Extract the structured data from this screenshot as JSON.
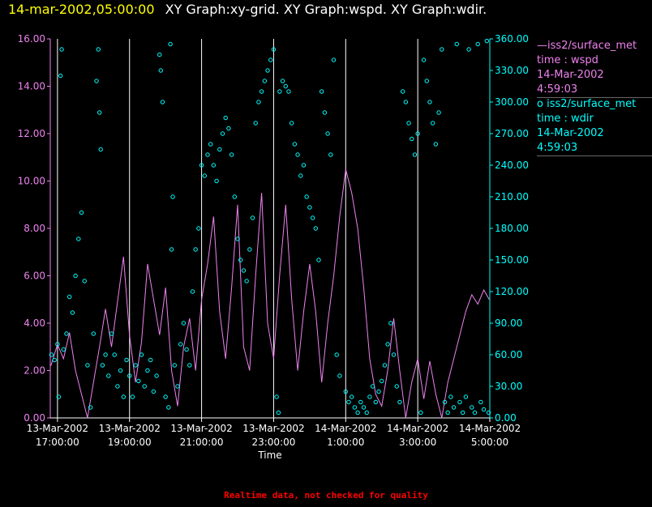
{
  "header": {
    "timestamp": "14-mar-2002,05:00:00",
    "graphs": "XY Graph:xy-grid.  XY Graph:wspd.  XY Graph:wdir."
  },
  "legend": [
    {
      "symbol": "—",
      "source": "iss2/surface_met",
      "field": "time : wspd",
      "date": "14-Mar-2002",
      "time": "4:59:03"
    },
    {
      "symbol": "o",
      "source": "iss2/surface_met",
      "field": "time : wdir",
      "date": "14-Mar-2002",
      "time": "4:59:03"
    }
  ],
  "footer": "Realtime data, not checked for quality",
  "colors": {
    "wspd": "#ee82ee",
    "wdir": "#00ffff",
    "grid": "#ffffff",
    "header_time": "#ffff00",
    "footer": "#ff0000"
  },
  "chart_data": {
    "type": "line",
    "xlabel": "Time",
    "x_ticks": [
      {
        "date": "13-Mar-2002",
        "time": "17:00:00"
      },
      {
        "date": "13-Mar-2002",
        "time": "19:00:00"
      },
      {
        "date": "13-Mar-2002",
        "time": "21:00:00"
      },
      {
        "date": "13-Mar-2002",
        "time": "23:00:00"
      },
      {
        "date": "14-Mar-2002",
        "time": "1:00:00"
      },
      {
        "date": "14-Mar-2002",
        "time": "3:00:00"
      },
      {
        "date": "14-Mar-2002",
        "time": "5:00:00"
      }
    ],
    "xlim": [
      "2002-03-13 16:48",
      "2002-03-14 05:00"
    ],
    "y_left": {
      "label": "",
      "lim": [
        0,
        16
      ],
      "ticks": [
        "0.00",
        "2.00",
        "4.00",
        "6.00",
        "8.00",
        "10.00",
        "12.00",
        "14.00",
        "16.00"
      ]
    },
    "y_right": {
      "label": "",
      "lim": [
        0,
        360
      ],
      "ticks": [
        "0.00",
        "30.00",
        "60.00",
        "90.00",
        "120.00",
        "150.00",
        "180.00",
        "210.00",
        "240.00",
        "270.00",
        "300.00",
        "330.00",
        "360.00"
      ]
    },
    "grid": "vertical",
    "series": [
      {
        "name": "iss2/surface_met time : wspd",
        "axis": "left",
        "style": "line",
        "points": [
          [
            "2002-03-13 16:49",
            2.2
          ],
          [
            "2002-03-13 17:00",
            3.1
          ],
          [
            "2002-03-13 17:10",
            2.5
          ],
          [
            "2002-03-13 17:20",
            3.6
          ],
          [
            "2002-03-13 17:30",
            2.0
          ],
          [
            "2002-03-13 17:40",
            1.0
          ],
          [
            "2002-03-13 17:50",
            0.0
          ],
          [
            "2002-03-13 18:00",
            1.5
          ],
          [
            "2002-03-13 18:10",
            3.0
          ],
          [
            "2002-03-13 18:20",
            4.6
          ],
          [
            "2002-03-13 18:30",
            3.0
          ],
          [
            "2002-03-13 18:40",
            4.9
          ],
          [
            "2002-03-13 18:50",
            6.8
          ],
          [
            "2002-03-13 19:00",
            3.5
          ],
          [
            "2002-03-13 19:10",
            1.5
          ],
          [
            "2002-03-13 19:20",
            3.2
          ],
          [
            "2002-03-13 19:30",
            6.5
          ],
          [
            "2002-03-13 19:40",
            5.0
          ],
          [
            "2002-03-13 19:50",
            3.5
          ],
          [
            "2002-03-13 20:00",
            5.5
          ],
          [
            "2002-03-13 20:10",
            2.0
          ],
          [
            "2002-03-13 20:20",
            0.5
          ],
          [
            "2002-03-13 20:30",
            3.0
          ],
          [
            "2002-03-13 20:40",
            4.2
          ],
          [
            "2002-03-13 20:50",
            2.0
          ],
          [
            "2002-03-13 21:00",
            5.0
          ],
          [
            "2002-03-13 21:10",
            6.5
          ],
          [
            "2002-03-13 21:20",
            8.5
          ],
          [
            "2002-03-13 21:30",
            4.5
          ],
          [
            "2002-03-13 21:40",
            2.5
          ],
          [
            "2002-03-13 21:50",
            5.5
          ],
          [
            "2002-03-13 22:00",
            9.0
          ],
          [
            "2002-03-13 22:10",
            3.0
          ],
          [
            "2002-03-13 22:20",
            2.0
          ],
          [
            "2002-03-13 22:30",
            6.0
          ],
          [
            "2002-03-13 22:40",
            9.5
          ],
          [
            "2002-03-13 22:50",
            4.0
          ],
          [
            "2002-03-13 23:00",
            2.5
          ],
          [
            "2002-03-13 23:10",
            6.0
          ],
          [
            "2002-03-13 23:20",
            9.0
          ],
          [
            "2002-03-13 23:30",
            5.0
          ],
          [
            "2002-03-13 23:40",
            2.0
          ],
          [
            "2002-03-13 23:50",
            4.5
          ],
          [
            "2002-03-14 00:00",
            6.5
          ],
          [
            "2002-03-14 00:10",
            4.5
          ],
          [
            "2002-03-14 00:20",
            1.5
          ],
          [
            "2002-03-14 00:30",
            4.0
          ],
          [
            "2002-03-14 00:40",
            6.0
          ],
          [
            "2002-03-14 00:50",
            8.5
          ],
          [
            "2002-03-14 01:00",
            10.5
          ],
          [
            "2002-03-14 01:10",
            9.5
          ],
          [
            "2002-03-14 01:20",
            8.0
          ],
          [
            "2002-03-14 01:30",
            5.5
          ],
          [
            "2002-03-14 01:40",
            2.5
          ],
          [
            "2002-03-14 01:50",
            1.0
          ],
          [
            "2002-03-14 02:00",
            0.5
          ],
          [
            "2002-03-14 02:10",
            2.0
          ],
          [
            "2002-03-14 02:20",
            4.2
          ],
          [
            "2002-03-14 02:30",
            2.0
          ],
          [
            "2002-03-14 02:40",
            0.0
          ],
          [
            "2002-03-14 02:50",
            1.5
          ],
          [
            "2002-03-14 03:00",
            2.5
          ],
          [
            "2002-03-14 03:10",
            0.8
          ],
          [
            "2002-03-14 03:20",
            2.4
          ],
          [
            "2002-03-14 03:30",
            1.0
          ],
          [
            "2002-03-14 03:40",
            0.0
          ],
          [
            "2002-03-14 03:50",
            1.5
          ],
          [
            "2002-03-14 04:00",
            2.5
          ],
          [
            "2002-03-14 04:10",
            3.5
          ],
          [
            "2002-03-14 04:20",
            4.5
          ],
          [
            "2002-03-14 04:30",
            5.2
          ],
          [
            "2002-03-14 04:40",
            4.8
          ],
          [
            "2002-03-14 04:50",
            5.4
          ],
          [
            "2002-03-14 04:59",
            5.0
          ]
        ]
      },
      {
        "name": "iss2/surface_met time : wdir",
        "axis": "right",
        "style": "scatter",
        "points": [
          [
            "2002-03-13 16:50",
            60
          ],
          [
            "2002-03-13 16:55",
            55
          ],
          [
            "2002-03-13 17:00",
            70
          ],
          [
            "2002-03-13 17:02",
            20
          ],
          [
            "2002-03-13 17:05",
            325
          ],
          [
            "2002-03-13 17:07",
            350
          ],
          [
            "2002-03-13 17:10",
            65
          ],
          [
            "2002-03-13 17:15",
            80
          ],
          [
            "2002-03-13 17:20",
            115
          ],
          [
            "2002-03-13 17:25",
            100
          ],
          [
            "2002-03-13 17:30",
            135
          ],
          [
            "2002-03-13 17:35",
            170
          ],
          [
            "2002-03-13 17:40",
            195
          ],
          [
            "2002-03-13 17:45",
            130
          ],
          [
            "2002-03-13 17:50",
            50
          ],
          [
            "2002-03-13 17:55",
            10
          ],
          [
            "2002-03-13 18:00",
            80
          ],
          [
            "2002-03-13 18:05",
            320
          ],
          [
            "2002-03-13 18:08",
            350
          ],
          [
            "2002-03-13 18:10",
            290
          ],
          [
            "2002-03-13 18:12",
            255
          ],
          [
            "2002-03-13 18:15",
            50
          ],
          [
            "2002-03-13 18:20",
            60
          ],
          [
            "2002-03-13 18:25",
            40
          ],
          [
            "2002-03-13 18:30",
            80
          ],
          [
            "2002-03-13 18:35",
            60
          ],
          [
            "2002-03-13 18:40",
            30
          ],
          [
            "2002-03-13 18:45",
            45
          ],
          [
            "2002-03-13 18:50",
            20
          ],
          [
            "2002-03-13 18:55",
            55
          ],
          [
            "2002-03-13 19:00",
            40
          ],
          [
            "2002-03-13 19:05",
            20
          ],
          [
            "2002-03-13 19:10",
            50
          ],
          [
            "2002-03-13 19:15",
            35
          ],
          [
            "2002-03-13 19:20",
            60
          ],
          [
            "2002-03-13 19:25",
            30
          ],
          [
            "2002-03-13 19:30",
            45
          ],
          [
            "2002-03-13 19:35",
            55
          ],
          [
            "2002-03-13 19:40",
            25
          ],
          [
            "2002-03-13 19:45",
            40
          ],
          [
            "2002-03-13 19:50",
            345
          ],
          [
            "2002-03-13 19:52",
            330
          ],
          [
            "2002-03-13 19:55",
            300
          ],
          [
            "2002-03-13 20:00",
            20
          ],
          [
            "2002-03-13 20:05",
            10
          ],
          [
            "2002-03-13 20:08",
            355
          ],
          [
            "2002-03-13 20:10",
            160
          ],
          [
            "2002-03-13 20:12",
            210
          ],
          [
            "2002-03-13 20:15",
            50
          ],
          [
            "2002-03-13 20:20",
            30
          ],
          [
            "2002-03-13 20:25",
            70
          ],
          [
            "2002-03-13 20:30",
            90
          ],
          [
            "2002-03-13 20:35",
            65
          ],
          [
            "2002-03-13 20:40",
            50
          ],
          [
            "2002-03-13 20:45",
            120
          ],
          [
            "2002-03-13 20:50",
            160
          ],
          [
            "2002-03-13 20:55",
            180
          ],
          [
            "2002-03-13 21:00",
            240
          ],
          [
            "2002-03-13 21:05",
            230
          ],
          [
            "2002-03-13 21:10",
            250
          ],
          [
            "2002-03-13 21:15",
            260
          ],
          [
            "2002-03-13 21:20",
            240
          ],
          [
            "2002-03-13 21:25",
            225
          ],
          [
            "2002-03-13 21:30",
            255
          ],
          [
            "2002-03-13 21:35",
            270
          ],
          [
            "2002-03-13 21:40",
            285
          ],
          [
            "2002-03-13 21:45",
            275
          ],
          [
            "2002-03-13 21:50",
            250
          ],
          [
            "2002-03-13 21:55",
            210
          ],
          [
            "2002-03-13 22:00",
            170
          ],
          [
            "2002-03-13 22:05",
            150
          ],
          [
            "2002-03-13 22:10",
            140
          ],
          [
            "2002-03-13 22:15",
            130
          ],
          [
            "2002-03-13 22:20",
            160
          ],
          [
            "2002-03-13 22:25",
            190
          ],
          [
            "2002-03-13 22:30",
            280
          ],
          [
            "2002-03-13 22:35",
            300
          ],
          [
            "2002-03-13 22:40",
            310
          ],
          [
            "2002-03-13 22:45",
            320
          ],
          [
            "2002-03-13 22:50",
            330
          ],
          [
            "2002-03-13 22:55",
            340
          ],
          [
            "2002-03-13 23:00",
            350
          ],
          [
            "2002-03-13 23:05",
            20
          ],
          [
            "2002-03-13 23:08",
            5
          ],
          [
            "2002-03-13 23:10",
            310
          ],
          [
            "2002-03-13 23:15",
            320
          ],
          [
            "2002-03-13 23:20",
            315
          ],
          [
            "2002-03-13 23:25",
            310
          ],
          [
            "2002-03-13 23:30",
            280
          ],
          [
            "2002-03-13 23:35",
            260
          ],
          [
            "2002-03-13 23:40",
            250
          ],
          [
            "2002-03-13 23:45",
            230
          ],
          [
            "2002-03-13 23:50",
            240
          ],
          [
            "2002-03-13 23:55",
            210
          ],
          [
            "2002-03-14 00:00",
            200
          ],
          [
            "2002-03-14 00:05",
            190
          ],
          [
            "2002-03-14 00:10",
            180
          ],
          [
            "2002-03-14 00:15",
            150
          ],
          [
            "2002-03-14 00:20",
            310
          ],
          [
            "2002-03-14 00:25",
            290
          ],
          [
            "2002-03-14 00:30",
            270
          ],
          [
            "2002-03-14 00:35",
            250
          ],
          [
            "2002-03-14 00:40",
            340
          ],
          [
            "2002-03-14 00:45",
            60
          ],
          [
            "2002-03-14 00:50",
            40
          ],
          [
            "2002-03-14 01:00",
            25
          ],
          [
            "2002-03-14 01:05",
            15
          ],
          [
            "2002-03-14 01:10",
            20
          ],
          [
            "2002-03-14 01:15",
            10
          ],
          [
            "2002-03-14 01:20",
            5
          ],
          [
            "2002-03-14 01:25",
            15
          ],
          [
            "2002-03-14 01:30",
            10
          ],
          [
            "2002-03-14 01:35",
            5
          ],
          [
            "2002-03-14 01:40",
            20
          ],
          [
            "2002-03-14 01:45",
            30
          ],
          [
            "2002-03-14 01:50",
            15
          ],
          [
            "2002-03-14 01:55",
            25
          ],
          [
            "2002-03-14 02:00",
            35
          ],
          [
            "2002-03-14 02:05",
            50
          ],
          [
            "2002-03-14 02:10",
            70
          ],
          [
            "2002-03-14 02:15",
            90
          ],
          [
            "2002-03-14 02:20",
            60
          ],
          [
            "2002-03-14 02:25",
            30
          ],
          [
            "2002-03-14 02:30",
            15
          ],
          [
            "2002-03-14 02:35",
            310
          ],
          [
            "2002-03-14 02:40",
            300
          ],
          [
            "2002-03-14 02:45",
            280
          ],
          [
            "2002-03-14 02:50",
            265
          ],
          [
            "2002-03-14 02:55",
            250
          ],
          [
            "2002-03-14 03:00",
            270
          ],
          [
            "2002-03-14 03:05",
            5
          ],
          [
            "2002-03-14 03:10",
            340
          ],
          [
            "2002-03-14 03:15",
            320
          ],
          [
            "2002-03-14 03:20",
            300
          ],
          [
            "2002-03-14 03:25",
            280
          ],
          [
            "2002-03-14 03:30",
            260
          ],
          [
            "2002-03-14 03:35",
            290
          ],
          [
            "2002-03-14 03:40",
            350
          ],
          [
            "2002-03-14 03:45",
            15
          ],
          [
            "2002-03-14 03:50",
            5
          ],
          [
            "2002-03-14 03:55",
            20
          ],
          [
            "2002-03-14 04:00",
            10
          ],
          [
            "2002-03-14 04:05",
            355
          ],
          [
            "2002-03-14 04:10",
            15
          ],
          [
            "2002-03-14 04:15",
            5
          ],
          [
            "2002-03-14 04:20",
            20
          ],
          [
            "2002-03-14 04:25",
            350
          ],
          [
            "2002-03-14 04:30",
            10
          ],
          [
            "2002-03-14 04:35",
            5
          ],
          [
            "2002-03-14 04:40",
            355
          ],
          [
            "2002-03-14 04:45",
            15
          ],
          [
            "2002-03-14 04:50",
            8
          ],
          [
            "2002-03-14 04:55",
            358
          ],
          [
            "2002-03-14 04:58",
            5
          ]
        ]
      }
    ]
  }
}
